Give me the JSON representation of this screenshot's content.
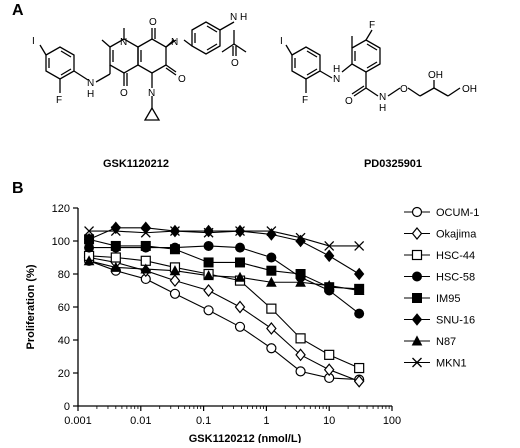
{
  "panel_a": {
    "letter": "A",
    "compound_left": {
      "name": "GSK1120212",
      "atoms": {
        "i": "I",
        "f": "F",
        "nh": "N",
        "h": "H",
        "n1": "N",
        "o1": "O",
        "n2": "N",
        "o_top": "O",
        "n3": "N",
        "o_mid": "O",
        "o_bot": "O",
        "n4": "N",
        "h4": "H",
        "o_amide": "O"
      }
    },
    "compound_right": {
      "name": "PD0325901",
      "atoms": {
        "i": "I",
        "f1": "F",
        "f2": "F",
        "n": "N",
        "h": "H",
        "o_c": "O",
        "h_n": "H",
        "n_am": "N",
        "o_e": "O",
        "oh1": "OH",
        "oh2": "OH"
      }
    }
  },
  "panel_b": {
    "letter": "B"
  },
  "chart_data": {
    "type": "line",
    "title": "",
    "xlabel": "GSK1120212 (nmol/L)",
    "ylabel": "Proliferation (%)",
    "xscale": "log",
    "xlim": [
      0.001,
      100
    ],
    "ylim": [
      0,
      120
    ],
    "x_ticks": [
      "0.001",
      "0.01",
      "0.1",
      "1",
      "10",
      "100"
    ],
    "y_ticks": [
      "0",
      "20",
      "40",
      "60",
      "80",
      "100",
      "120"
    ],
    "x": [
      0.0015,
      0.004,
      0.012,
      0.035,
      0.12,
      0.38,
      1.2,
      3.5,
      10,
      30
    ],
    "legend_position": "right",
    "series": [
      {
        "name": "OCUM-1",
        "marker": "circle-open",
        "values": [
          88,
          82,
          77,
          68,
          58,
          48,
          35,
          21,
          17,
          16
        ]
      },
      {
        "name": "Okajima",
        "marker": "diamond-open",
        "values": [
          90,
          87,
          82,
          76,
          70,
          60,
          47,
          31,
          22,
          15
        ]
      },
      {
        "name": "HSC-44",
        "marker": "square-open",
        "values": [
          91,
          90,
          88,
          84,
          80,
          76,
          59,
          41,
          31,
          23
        ]
      },
      {
        "name": "HSC-58",
        "marker": "circle-filled",
        "values": [
          96,
          96,
          96,
          96,
          97,
          96,
          90,
          78,
          70,
          56
        ]
      },
      {
        "name": "IM95",
        "marker": "square-filled",
        "values": [
          101,
          97,
          97,
          95,
          87,
          87,
          82,
          80,
          72,
          71
        ]
      },
      {
        "name": "SNU-16",
        "marker": "diamond-filled",
        "values": [
          101,
          108,
          108,
          106,
          106,
          106,
          104,
          100,
          91,
          80
        ]
      },
      {
        "name": "N87",
        "marker": "triangle-filled",
        "values": [
          88,
          84,
          83,
          82,
          79,
          78,
          75,
          75,
          73,
          70
        ]
      },
      {
        "name": "MKN1",
        "marker": "x",
        "values": [
          106,
          106,
          105,
          106,
          105,
          106,
          106,
          102,
          97,
          97
        ]
      }
    ]
  }
}
